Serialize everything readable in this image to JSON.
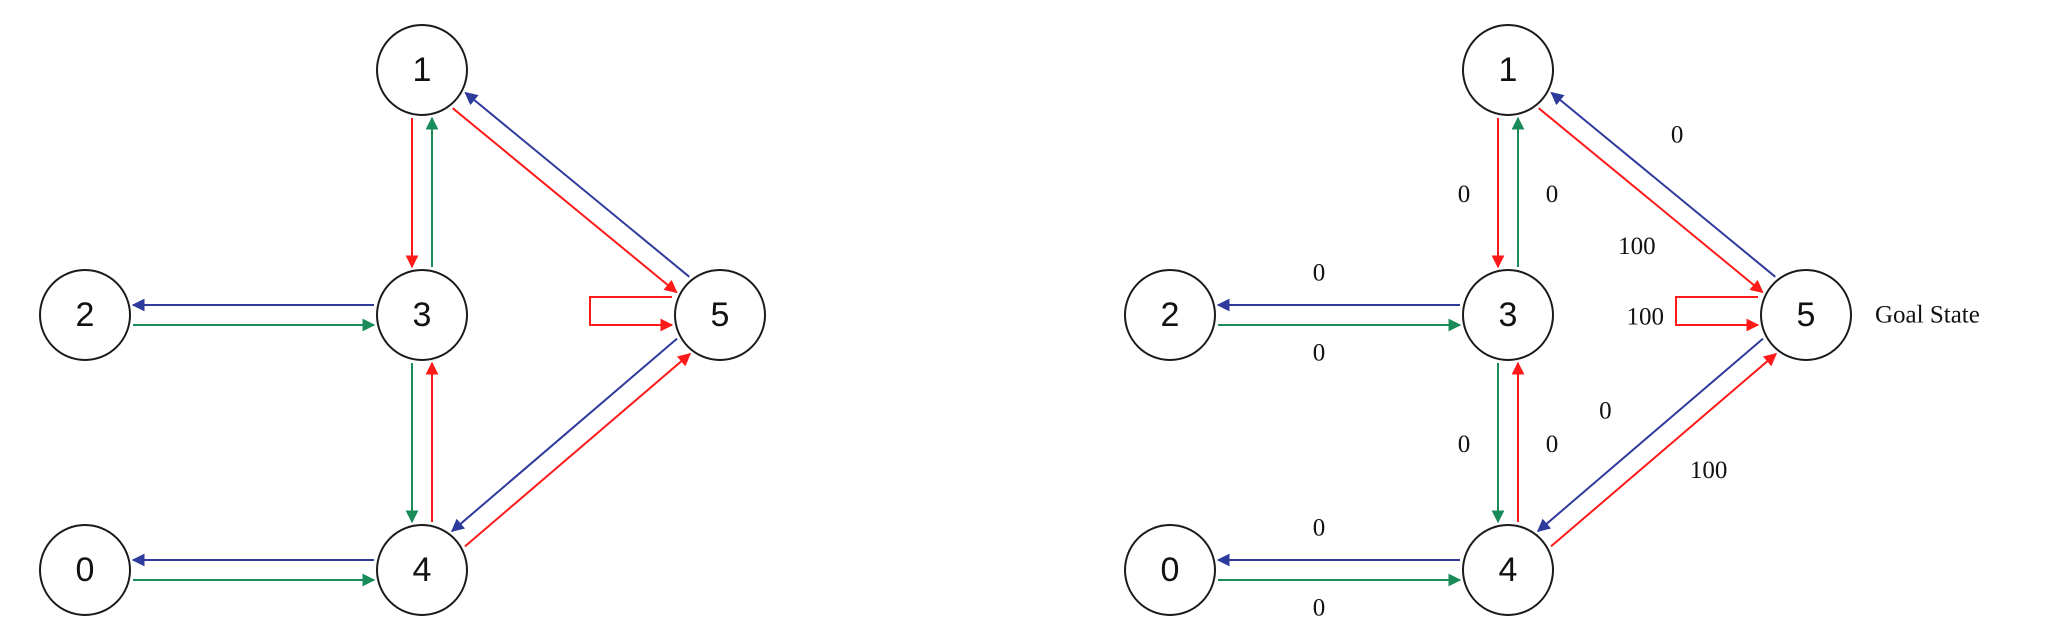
{
  "colors": {
    "red": "#ff1a1a",
    "green": "#1a8c5a",
    "blue": "#2e3a9c",
    "node_stroke": "#1a1a1a"
  },
  "graph": {
    "nodes": [
      "0",
      "1",
      "2",
      "3",
      "4",
      "5"
    ],
    "edges": [
      {
        "from": "1",
        "to": "3",
        "color": "red"
      },
      {
        "from": "3",
        "to": "1",
        "color": "green"
      },
      {
        "from": "1",
        "to": "5",
        "color": "red"
      },
      {
        "from": "5",
        "to": "1",
        "color": "blue"
      },
      {
        "from": "3",
        "to": "2",
        "color": "blue"
      },
      {
        "from": "2",
        "to": "3",
        "color": "green"
      },
      {
        "from": "3",
        "to": "4",
        "color": "green"
      },
      {
        "from": "4",
        "to": "3",
        "color": "red"
      },
      {
        "from": "4",
        "to": "0",
        "color": "blue"
      },
      {
        "from": "0",
        "to": "4",
        "color": "green"
      },
      {
        "from": "4",
        "to": "5",
        "color": "red"
      },
      {
        "from": "5",
        "to": "4",
        "color": "blue"
      },
      {
        "from": "5",
        "to": "5",
        "color": "red"
      }
    ]
  },
  "right_diagram": {
    "edge_labels": {
      "1-3": "0",
      "3-1": "0",
      "1-5": "100",
      "5-1": "0",
      "3-2": "0",
      "2-3": "0",
      "3-4": "0",
      "4-3": "0",
      "4-0": "0",
      "0-4": "0",
      "4-5": "100",
      "5-4": "0",
      "5-5": "100"
    },
    "goal_label": "Goal State"
  }
}
